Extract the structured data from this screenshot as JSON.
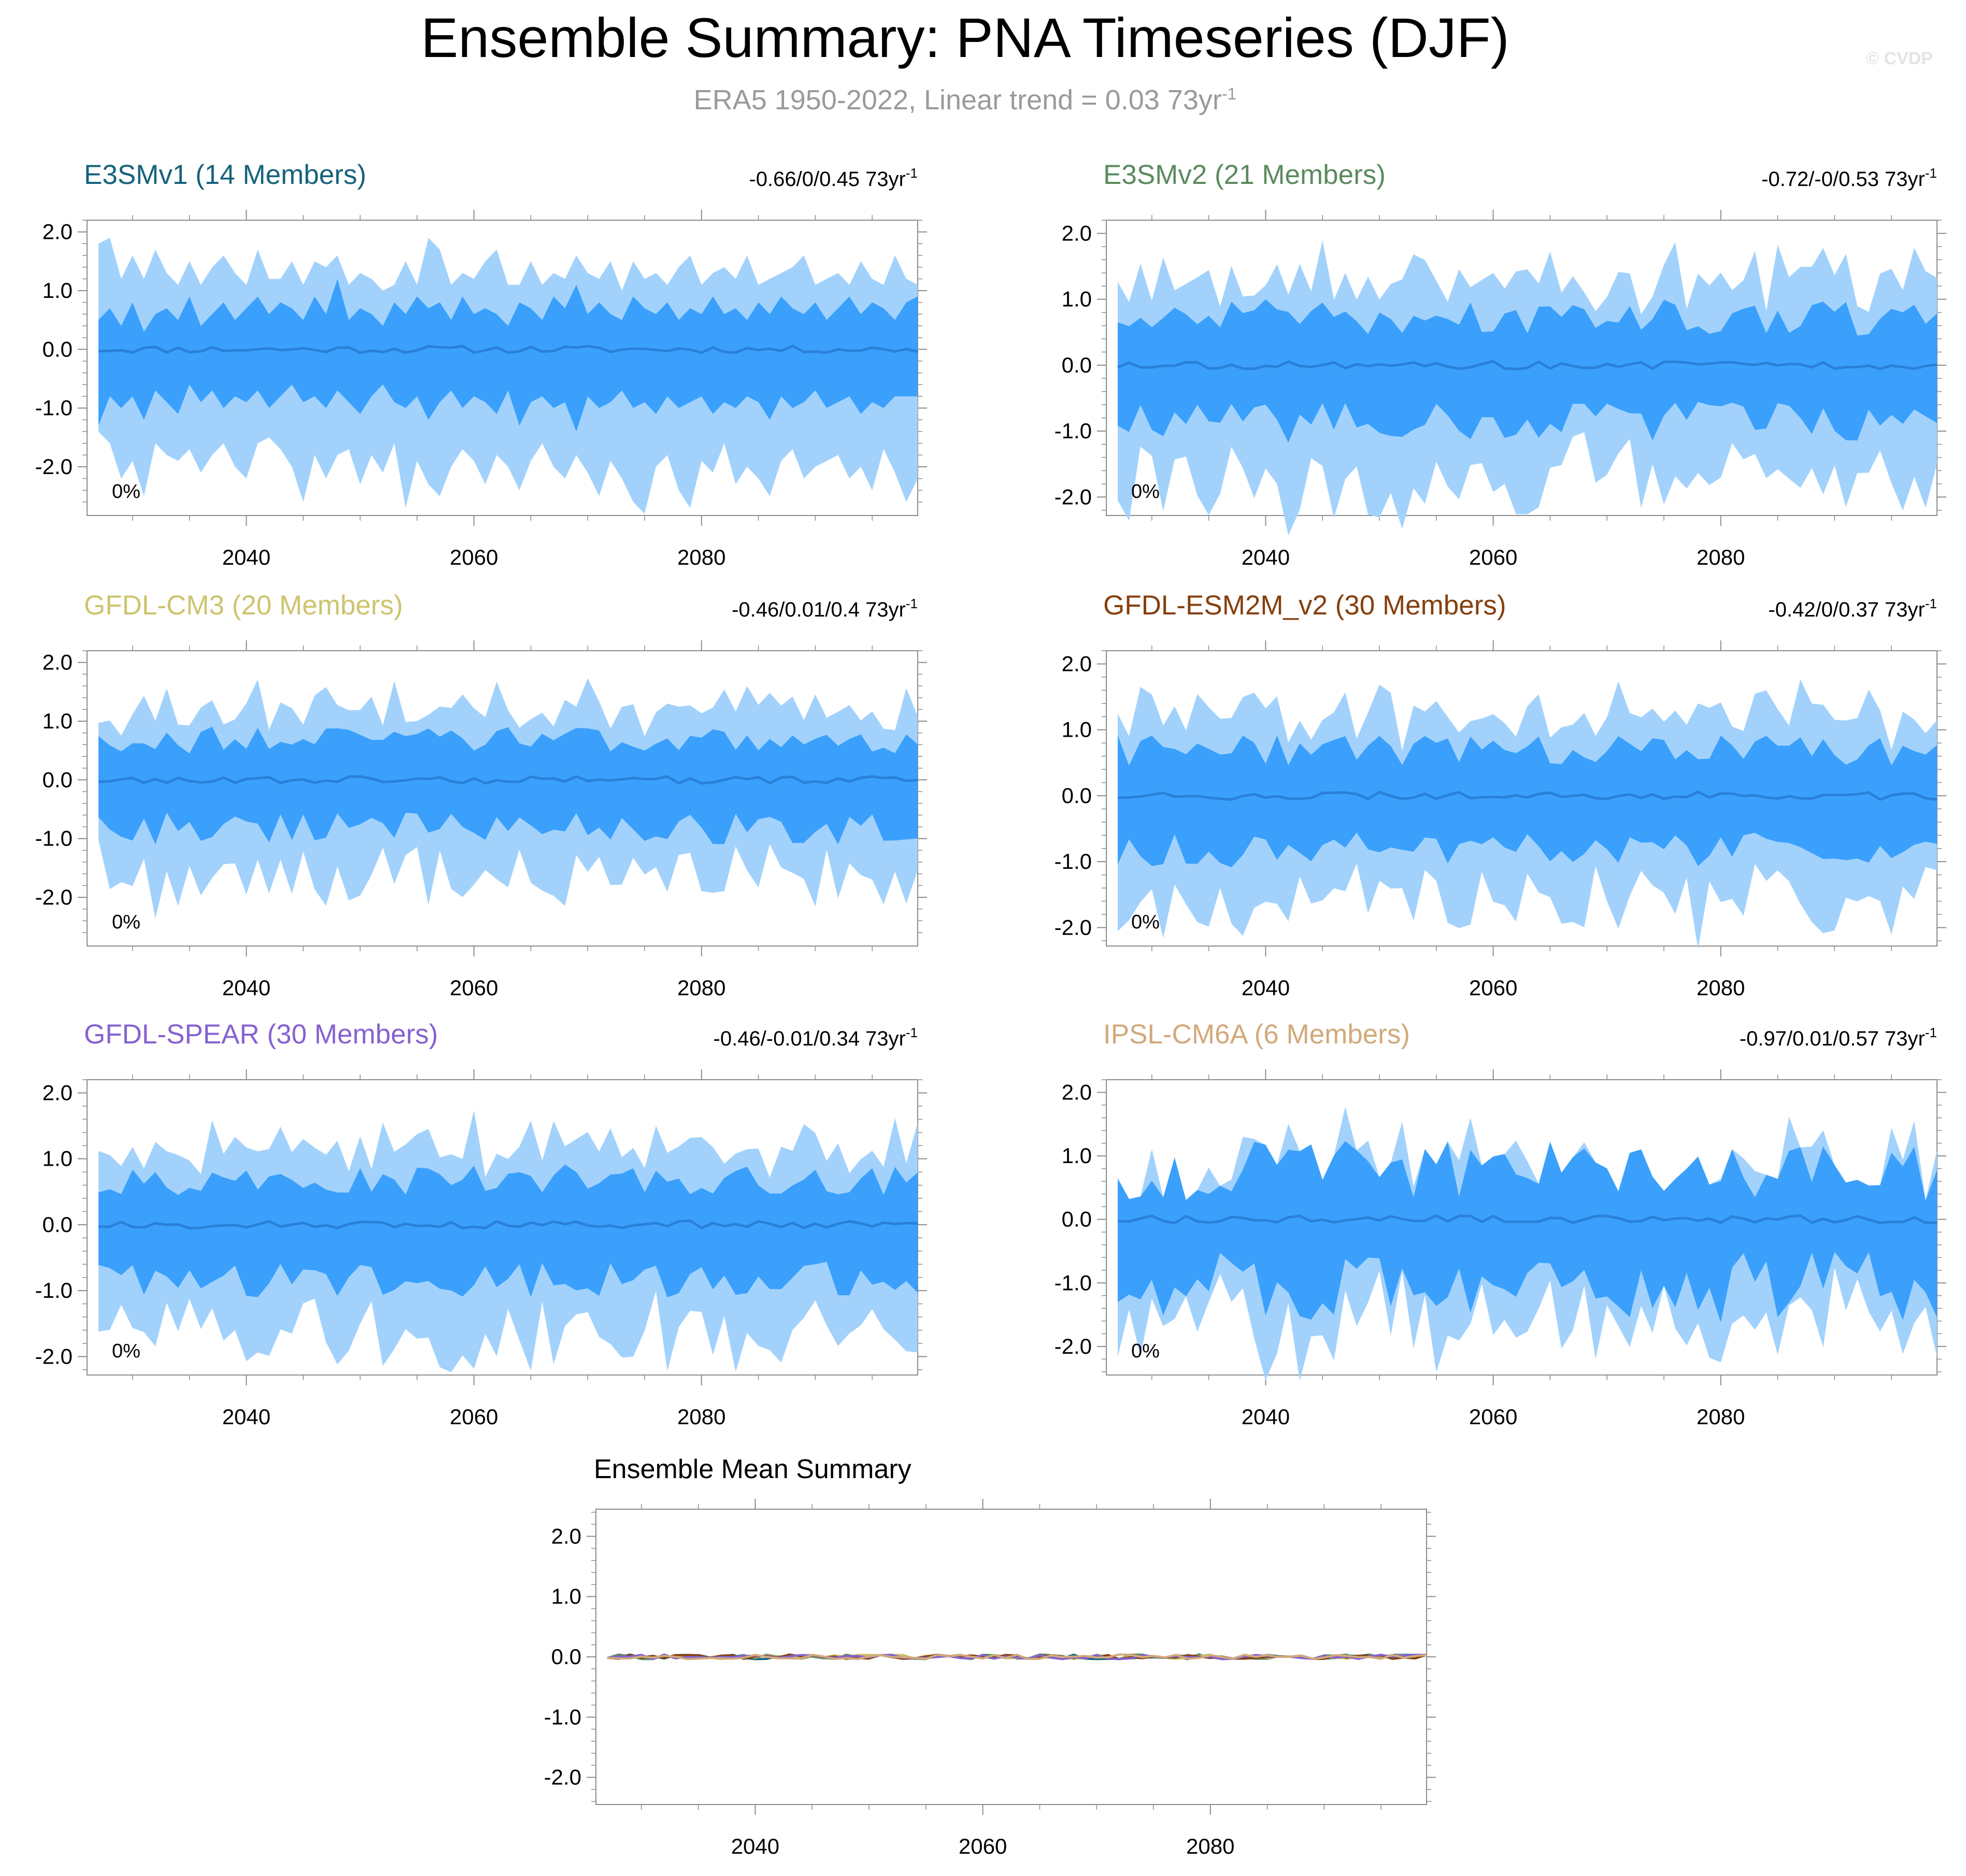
{
  "header": {
    "title": "Ensemble Summary: PNA Timeseries (DJF)",
    "subtitle_main": "ERA5 1950-2022, Linear trend = 0.03 73yr",
    "subtitle_sup": "-1",
    "copyright": "© CVDP"
  },
  "colors": {
    "outer_band": "#a2d2fc",
    "inner_band": "#3aa0fc",
    "mean_line": "#2a80d8",
    "frame": "#8c8c8c"
  },
  "chart_data": {
    "type": "area",
    "x_range": [
      2026,
      2099
    ],
    "y_range": [
      -2.7,
      2.4
    ],
    "y_ticks": [
      2.0,
      1.0,
      0.0,
      -1.0,
      -2.0
    ],
    "y_tick_labels": [
      "2.0",
      "1.0",
      "0.0",
      "-1.0",
      "-2.0"
    ],
    "x_ticks": [
      2040,
      2060,
      2080
    ],
    "x_tick_labels": [
      "2040",
      "2060",
      "2080"
    ],
    "trend_unit": "73yr",
    "trend_unit_sup": "-1",
    "panels": [
      {
        "name": "E3SMv1 (14 Members)",
        "color": "#17627c",
        "stats": "-0.66/0/0.45 73yr",
        "percent": "0%",
        "seed": 11,
        "spread": 1.0,
        "outer": {
          "start_year": 2027,
          "upper": [
            1.8,
            1.9,
            1.2,
            1.6,
            1.2,
            1.7,
            1.3,
            1.1,
            1.5,
            1.1,
            1.4,
            1.6,
            1.3,
            1.1,
            1.7,
            1.2,
            1.2,
            1.5,
            1.1,
            1.5,
            1.4,
            1.6,
            1.1,
            1.3,
            1.2,
            1.0,
            1.1,
            1.5,
            1.1,
            1.9,
            1.7,
            1.1,
            1.3,
            1.2,
            1.5,
            1.7,
            1.1,
            1.1,
            1.5,
            1.1,
            1.3,
            1.2,
            1.6,
            1.3,
            1.2,
            1.5,
            1.0,
            1.5,
            1.2,
            1.3,
            1.1,
            1.4,
            1.6,
            1.1,
            1.3,
            1.4,
            1.2,
            1.6,
            1.1,
            1.2,
            1.3,
            1.4,
            1.6,
            1.1,
            1.2,
            1.3,
            1.1,
            1.5,
            1.2,
            1.1,
            1.6,
            1.2,
            1.1
          ],
          "lower": [
            -1.4,
            -1.6,
            -2.2,
            -1.9,
            -2.5,
            -1.6,
            -1.8,
            -1.9,
            -1.7,
            -2.1,
            -1.8,
            -1.6,
            -2.0,
            -2.2,
            -1.6,
            -1.5,
            -1.7,
            -2.0,
            -2.6,
            -1.8,
            -2.2,
            -1.8,
            -1.7,
            -2.3,
            -1.8,
            -2.1,
            -1.6,
            -2.7,
            -1.9,
            -2.3,
            -2.5,
            -2.0,
            -1.7,
            -1.9,
            -2.3,
            -1.8,
            -2.0,
            -2.4,
            -1.9,
            -1.6,
            -2.0,
            -2.2,
            -1.8,
            -2.1,
            -2.5,
            -1.9,
            -2.2,
            -2.6,
            -2.8,
            -2.0,
            -1.8,
            -2.4,
            -2.7,
            -1.9,
            -2.1,
            -1.6,
            -2.3,
            -2.0,
            -2.2,
            -2.5,
            -1.9,
            -1.7,
            -2.2,
            -2.0,
            -1.9,
            -1.8,
            -2.2,
            -2.0,
            -2.4,
            -1.7,
            -2.1,
            -2.6,
            -2.2
          ]
        },
        "inner": {
          "start_year": 2027,
          "upper": [
            0.5,
            0.7,
            0.4,
            0.8,
            0.3,
            0.6,
            0.7,
            0.5,
            0.9,
            0.4,
            0.6,
            0.8,
            0.5,
            0.7,
            0.9,
            0.6,
            0.8,
            0.7,
            0.5,
            0.9,
            0.6,
            1.2,
            0.5,
            0.7,
            0.6,
            0.4,
            0.8,
            0.6,
            0.9,
            0.7,
            0.8,
            0.5,
            0.9,
            0.6,
            0.7,
            0.6,
            0.4,
            0.8,
            0.7,
            0.5,
            0.9,
            0.7,
            1.1,
            0.6,
            0.8,
            0.6,
            0.5,
            0.9,
            0.7,
            0.6,
            0.8,
            0.5,
            0.7,
            0.6,
            0.9,
            0.6,
            0.7,
            0.5,
            0.8,
            0.6,
            0.9,
            0.7,
            0.6,
            0.8,
            0.5,
            0.7,
            0.9,
            0.6,
            0.8,
            0.7,
            0.5,
            0.8,
            0.9
          ],
          "lower": [
            -1.3,
            -0.8,
            -1.0,
            -0.8,
            -1.2,
            -0.7,
            -0.9,
            -1.1,
            -0.6,
            -0.9,
            -0.7,
            -1.0,
            -0.8,
            -0.9,
            -0.7,
            -1.0,
            -0.8,
            -0.6,
            -0.9,
            -0.8,
            -1.0,
            -0.7,
            -0.9,
            -1.1,
            -0.8,
            -0.6,
            -0.9,
            -1.0,
            -0.8,
            -1.2,
            -0.9,
            -0.7,
            -1.0,
            -0.8,
            -0.9,
            -1.1,
            -0.7,
            -1.3,
            -0.9,
            -0.8,
            -1.0,
            -0.9,
            -1.4,
            -0.8,
            -1.0,
            -0.9,
            -0.7,
            -1.0,
            -0.9,
            -1.1,
            -0.8,
            -1.0,
            -0.9,
            -0.8,
            -1.1,
            -0.9,
            -1.0,
            -0.8,
            -0.9,
            -1.2,
            -0.8,
            -1.0,
            -0.9,
            -0.7,
            -1.0,
            -0.9,
            -0.8,
            -1.1,
            -0.9,
            -1.0,
            -0.8,
            -0.8,
            -0.8
          ]
        }
      },
      {
        "name": "E3SMv2 (21 Members)",
        "color": "#5b8a5e",
        "stats": "-0.72/-0/0.53 73yr",
        "percent": "0%",
        "seed": 23,
        "spread": 1.0
      },
      {
        "name": "GFDL-CM3 (20 Members)",
        "color": "#cdc46e",
        "stats": "-0.46/0.01/0.4 73yr",
        "percent": "0%",
        "seed": 37,
        "spread": 0.85
      },
      {
        "name": "GFDL-ESM2M_v2 (30 Members)",
        "color": "#853f0c",
        "stats": "-0.42/0/0.37 73yr",
        "percent": "0%",
        "seed": 41,
        "spread": 0.85
      },
      {
        "name": "GFDL-SPEAR (30 Members)",
        "color": "#8562d0",
        "stats": "-0.46/-0.01/0.34 73yr",
        "percent": "0%",
        "seed": 53,
        "spread": 0.85
      },
      {
        "name": "IPSL-CM6A (6 Members)",
        "color": "#d2a97c",
        "stats": "-0.97/0.01/0.57 73yr",
        "percent": "0%",
        "seed": 67,
        "spread": 1.05,
        "sparse": true
      }
    ],
    "mean_panel": {
      "title": "Ensemble Mean Summary",
      "series_colors": [
        "#17627c",
        "#5b8a5e",
        "#cdc46e",
        "#853f0c",
        "#8562d0",
        "#d2a97c"
      ],
      "amplitude": 0.04
    }
  }
}
